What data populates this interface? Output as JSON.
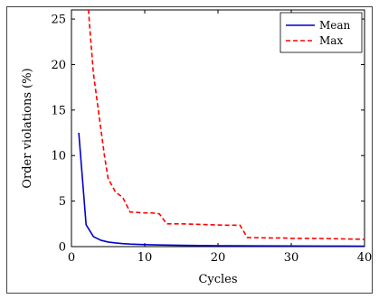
{
  "chart_data": {
    "type": "line",
    "title": "",
    "xlabel": "Cycles",
    "ylabel": "Order violations (%)",
    "xlim": [
      0,
      40
    ],
    "ylim": [
      0,
      26
    ],
    "xticks": [
      0,
      10,
      20,
      30,
      40
    ],
    "yticks": [
      0,
      5,
      10,
      15,
      20,
      25
    ],
    "grid": false,
    "legend_position": "top-right",
    "series": [
      {
        "name": "Mean",
        "color": "#0000cc",
        "style": "solid",
        "x": [
          1,
          2,
          3,
          4,
          5,
          6,
          7,
          8,
          10,
          12,
          15,
          20,
          25,
          30,
          35,
          40
        ],
        "y": [
          12.5,
          2.4,
          1.1,
          0.7,
          0.5,
          0.4,
          0.33,
          0.28,
          0.22,
          0.18,
          0.14,
          0.1,
          0.08,
          0.07,
          0.06,
          0.05
        ]
      },
      {
        "name": "Max",
        "color": "#ff0000",
        "style": "dashed",
        "x": [
          2,
          2.5,
          3,
          3.5,
          4,
          4.5,
          5,
          6,
          7,
          8,
          9,
          10,
          11,
          12,
          13,
          15,
          17,
          19,
          21,
          23,
          24,
          25,
          27,
          29,
          30,
          33,
          35,
          37,
          40
        ],
        "y": [
          30,
          24,
          19,
          16,
          13,
          10,
          7.5,
          6.0,
          5.4,
          3.8,
          3.75,
          3.7,
          3.7,
          3.6,
          2.5,
          2.5,
          2.45,
          2.4,
          2.35,
          2.35,
          1.0,
          0.98,
          0.95,
          0.95,
          0.9,
          0.9,
          0.88,
          0.85,
          0.8
        ]
      }
    ]
  }
}
